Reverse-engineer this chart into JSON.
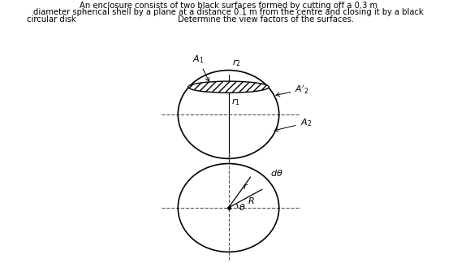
{
  "title_line1": "An enclosure consists of two black surfaces formed by cutting off a 0.3 m",
  "title_line2": "diameter spherical shell by a plane at a distance 0.1 m from the centre and closing it by a black",
  "title_line3_left": "circular disk",
  "title_line3_right": "Determine the view factors of the surfaces.",
  "bg_color": "#ffffff",
  "text_color": "#000000"
}
